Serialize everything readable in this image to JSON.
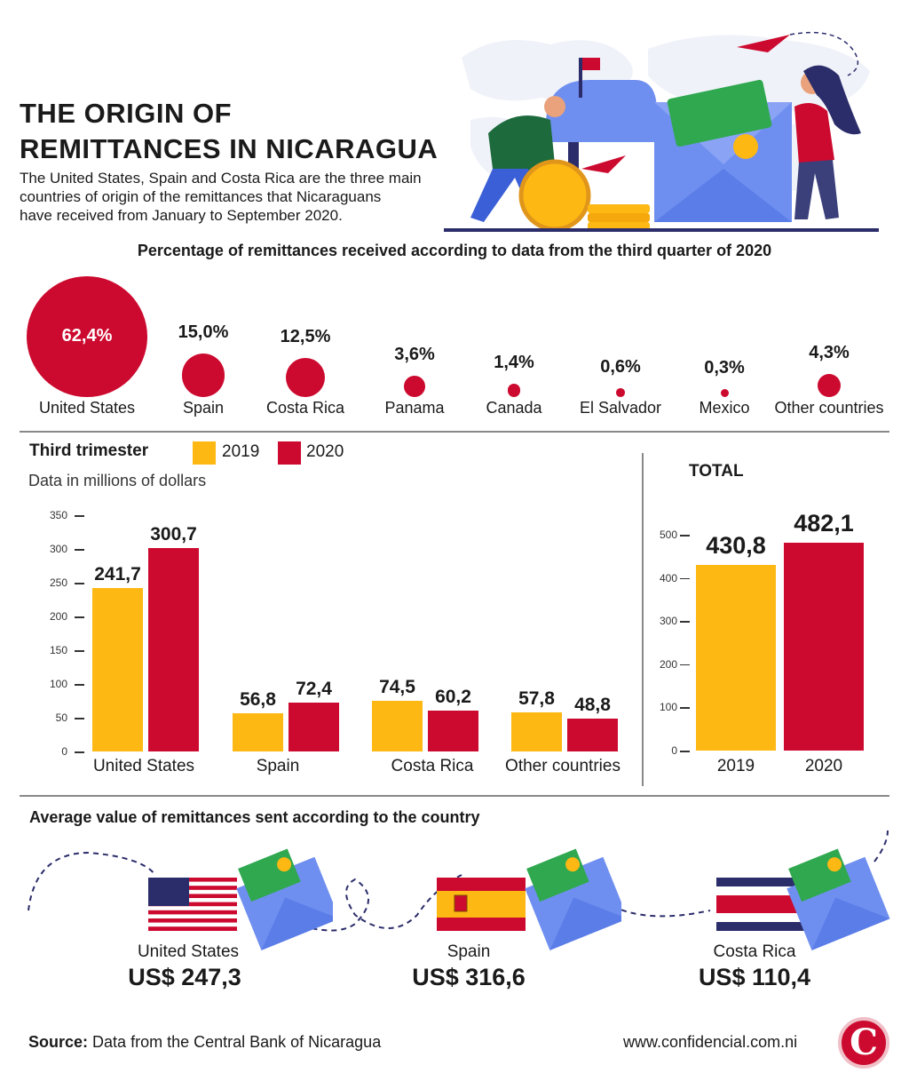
{
  "header": {
    "title_line1": "THE ORIGIN OF",
    "title_line2": "REMITTANCES IN NICARAGUA",
    "subtitle_line1": "The United States, Spain and Costa Rica are the three main",
    "subtitle_line2": "countries of origin of the remittances that Nicaraguans",
    "subtitle_line3": "have received from January to September 2020."
  },
  "colors": {
    "red": "#cc0a2f",
    "yellow": "#fdb813",
    "blue": "#6f8ff0",
    "navy": "#2b2d6b"
  },
  "bubbles": {
    "title": "Percentage of remittances received according to data from the third quarter of 2020",
    "items": [
      {
        "name": "United States",
        "pct_label": "62,4%",
        "value": 62.4
      },
      {
        "name": "Spain",
        "pct_label": "15,0%",
        "value": 15.0
      },
      {
        "name": "Costa Rica",
        "pct_label": "12,5%",
        "value": 12.5
      },
      {
        "name": "Panama",
        "pct_label": "3,6%",
        "value": 3.6
      },
      {
        "name": "Canada",
        "pct_label": "1,4%",
        "value": 1.4
      },
      {
        "name": "El Salvador",
        "pct_label": "0,6%",
        "value": 0.6
      },
      {
        "name": "Mexico",
        "pct_label": "0,3%",
        "value": 0.3
      },
      {
        "name": "Other countries",
        "pct_label": "4,3%",
        "value": 4.3
      }
    ]
  },
  "bar_section": {
    "legend_title": "Third trimester",
    "legend_2019": "2019",
    "legend_2020": "2020",
    "units_note": "Data in millions of dollars",
    "total_title": "TOTAL"
  },
  "chart_data": [
    {
      "type": "bar",
      "categories": [
        "United States",
        "Spain",
        "Costa Rica",
        "Other countries"
      ],
      "series": [
        {
          "name": "2019",
          "values": [
            241.7,
            56.8,
            74.5,
            57.8
          ],
          "labels": [
            "241,7",
            "56,8",
            "74,5",
            "57,8"
          ]
        },
        {
          "name": "2020",
          "values": [
            300.7,
            72.4,
            60.2,
            48.8
          ],
          "labels": [
            "300,7",
            "72,4",
            "60,2",
            "48,8"
          ]
        }
      ],
      "ylim": [
        0,
        350
      ],
      "yticks": [
        0,
        50,
        100,
        150,
        200,
        250,
        300,
        350
      ]
    },
    {
      "type": "bar",
      "title": "TOTAL",
      "categories": [
        "2019",
        "2020"
      ],
      "values": [
        430.8,
        482.1
      ],
      "labels": [
        "430,8",
        "482,1"
      ],
      "ylim": [
        0,
        500
      ],
      "yticks": [
        0,
        100,
        200,
        300,
        400,
        500
      ]
    }
  ],
  "average": {
    "title": "Average value of remittances sent according to the country",
    "items": [
      {
        "country": "United States",
        "value": "US$ 247,3",
        "flag": "usa-flag"
      },
      {
        "country": "Spain",
        "value": "US$ 316,6",
        "flag": "spain-flag"
      },
      {
        "country": "Costa Rica",
        "value": "US$ 110,4",
        "flag": "costa-rica-flag"
      }
    ]
  },
  "footer": {
    "source_label": "Source:",
    "source_text": "Data from the Central Bank of Nicaragua",
    "website": "www.confidencial.com.ni",
    "logo_letter": "C"
  }
}
